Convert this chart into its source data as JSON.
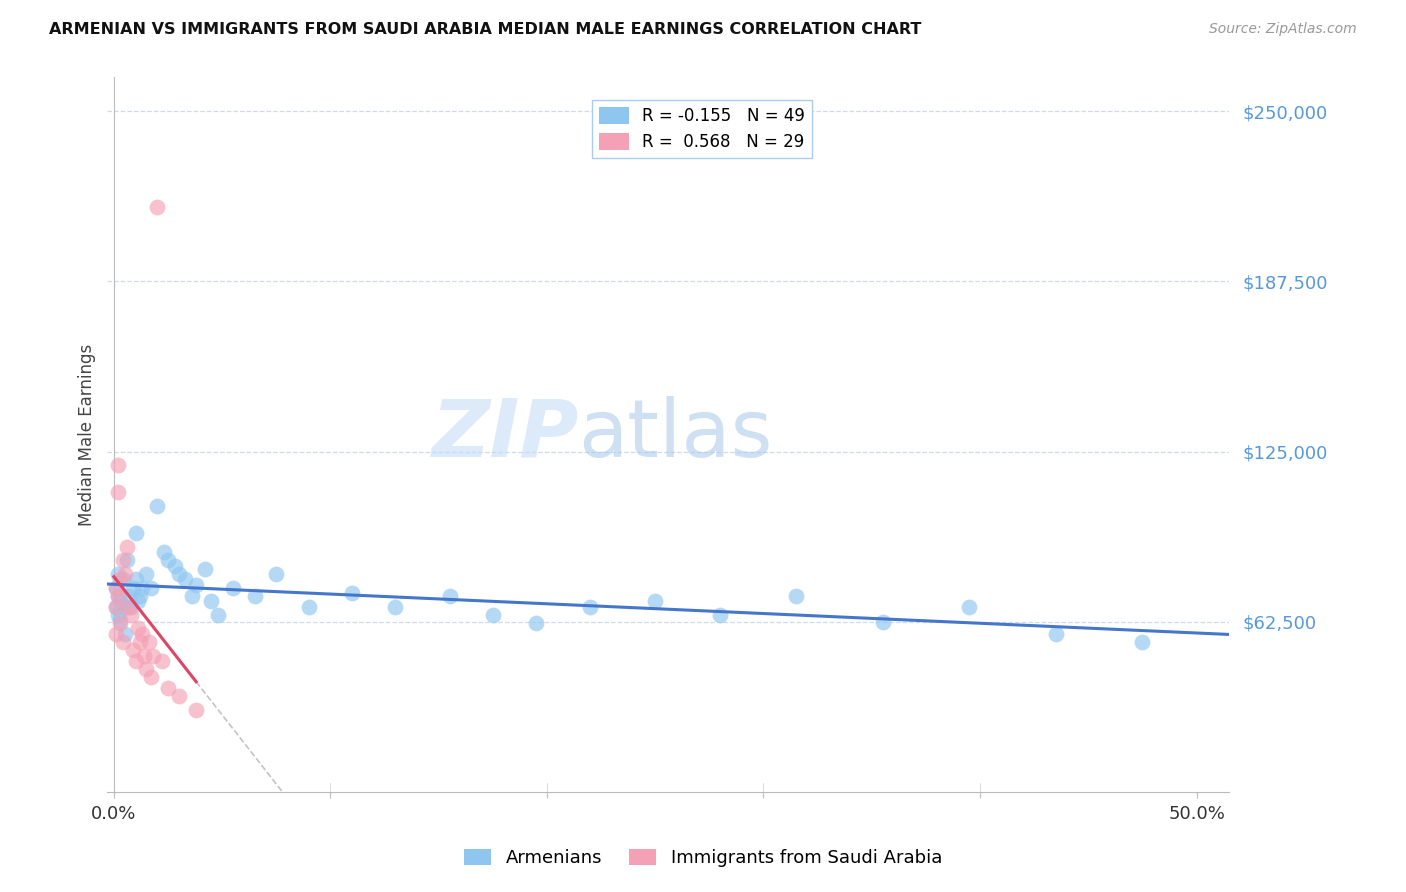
{
  "title": "ARMENIAN VS IMMIGRANTS FROM SAUDI ARABIA MEDIAN MALE EARNINGS CORRELATION CHART",
  "source": "Source: ZipAtlas.com",
  "ylabel": "Median Male Earnings",
  "ylim": [
    0,
    262500
  ],
  "xlim": [
    -0.003,
    0.515
  ],
  "ytick_vals": [
    62500,
    125000,
    187500,
    250000
  ],
  "ytick_labels": [
    "$62,500",
    "$125,000",
    "$187,500",
    "$250,000"
  ],
  "R_armenian": -0.155,
  "N_armenian": 49,
  "R_saudi": 0.568,
  "N_saudi": 29,
  "legend_label_armenian": "Armenians",
  "legend_label_saudi": "Immigrants from Saudi Arabia",
  "color_armenian": "#8ec6f0",
  "color_saudi": "#f4a0b5",
  "line_color_armenian": "#4477cc",
  "line_color_saudi": "#dd4466",
  "watermark_zip": "ZIP",
  "watermark_atlas": "atlas",
  "armenian_x": [
    0.001,
    0.001,
    0.002,
    0.002,
    0.002,
    0.003,
    0.003,
    0.004,
    0.005,
    0.005,
    0.006,
    0.007,
    0.008,
    0.009,
    0.01,
    0.01,
    0.011,
    0.012,
    0.013,
    0.015,
    0.017,
    0.02,
    0.023,
    0.025,
    0.028,
    0.03,
    0.033,
    0.036,
    0.038,
    0.042,
    0.045,
    0.048,
    0.055,
    0.065,
    0.075,
    0.09,
    0.11,
    0.13,
    0.155,
    0.175,
    0.195,
    0.22,
    0.25,
    0.28,
    0.315,
    0.355,
    0.395,
    0.435,
    0.475
  ],
  "armenian_y": [
    75000,
    68000,
    72000,
    65000,
    80000,
    70000,
    63000,
    78000,
    68000,
    58000,
    85000,
    72000,
    68000,
    75000,
    95000,
    78000,
    70000,
    72000,
    75000,
    80000,
    75000,
    105000,
    88000,
    85000,
    83000,
    80000,
    78000,
    72000,
    76000,
    82000,
    70000,
    65000,
    75000,
    72000,
    80000,
    68000,
    73000,
    68000,
    72000,
    65000,
    62000,
    68000,
    70000,
    65000,
    72000,
    62500,
    68000,
    58000,
    55000
  ],
  "saudi_x": [
    0.001,
    0.001,
    0.001,
    0.002,
    0.002,
    0.002,
    0.003,
    0.003,
    0.004,
    0.004,
    0.005,
    0.006,
    0.007,
    0.008,
    0.009,
    0.01,
    0.011,
    0.012,
    0.013,
    0.014,
    0.015,
    0.016,
    0.017,
    0.018,
    0.02,
    0.022,
    0.025,
    0.03,
    0.038
  ],
  "saudi_y": [
    68000,
    75000,
    58000,
    120000,
    110000,
    72000,
    78000,
    62000,
    85000,
    55000,
    80000,
    90000,
    68000,
    65000,
    52000,
    48000,
    60000,
    55000,
    58000,
    50000,
    45000,
    55000,
    42000,
    50000,
    215000,
    48000,
    38000,
    35000,
    30000
  ]
}
